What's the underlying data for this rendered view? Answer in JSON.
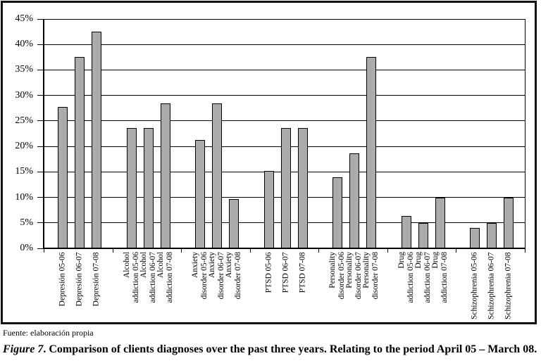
{
  "figure": {
    "source_note": "Fuente: elaboración propia",
    "caption_prefix": "Figure 7",
    "caption_text": ". Comparison of clients diagnoses over the past three years. Relating to the period April 05 – March 08."
  },
  "chart_data": {
    "type": "bar",
    "title": "",
    "xlabel": "",
    "ylabel": "",
    "ylim": [
      0,
      45
    ],
    "ytick_step": 5,
    "yticks": [
      "0%",
      "5%",
      "10%",
      "15%",
      "20%",
      "25%",
      "30%",
      "35%",
      "40%",
      "45%"
    ],
    "grid": true,
    "legend": false,
    "bar_fill": "#ababab",
    "bar_border": "#000000",
    "axis_color": "#000000",
    "groups": [
      {
        "category": "Depresión",
        "bars": [
          {
            "label": "Depresión 05-06",
            "lines": [
              "Depresión 05-06"
            ],
            "value": 27.8
          },
          {
            "label": "Depresión 06-07",
            "lines": [
              "Depresión 06-07"
            ],
            "value": 37.5
          },
          {
            "label": "Depresión 07-08",
            "lines": [
              "Depresión 07-08"
            ],
            "value": 42.5
          }
        ]
      },
      {
        "category": "Alcohol addiction",
        "bars": [
          {
            "label": "Alcohol addiction 05-06",
            "lines": [
              "Alcohol",
              "addiction 05-06"
            ],
            "value": 23.6
          },
          {
            "label": "Alcohol addiction 06-07",
            "lines": [
              "Alcohol",
              "addiction 06-07"
            ],
            "value": 23.6
          },
          {
            "label": "Alcohol addiction 07-08",
            "lines": [
              "Alcohol",
              "addiction 07-08"
            ],
            "value": 28.5
          }
        ]
      },
      {
        "category": "Anxiety disorder",
        "bars": [
          {
            "label": "Anxiety disorder 05-06",
            "lines": [
              "Anxiety",
              "disorder 05-06"
            ],
            "value": 21.3
          },
          {
            "label": "Anxiety disorder 06-07",
            "lines": [
              "Anxiety",
              "disorder 06-07"
            ],
            "value": 28.5
          },
          {
            "label": "Anxiety disorder 07-08",
            "lines": [
              "Anxiety",
              "disorder 07-08"
            ],
            "value": 9.7
          }
        ]
      },
      {
        "category": "PTSD",
        "bars": [
          {
            "label": "PTSD 05-06",
            "lines": [
              "PTSD 05-06"
            ],
            "value": 15.2
          },
          {
            "label": "PTSD 06-07",
            "lines": [
              "PTSD 06-07"
            ],
            "value": 23.6
          },
          {
            "label": "PTSD 07-08",
            "lines": [
              "PTSD 07-08"
            ],
            "value": 23.6
          }
        ]
      },
      {
        "category": "Personality disorder",
        "bars": [
          {
            "label": "Personality disorder 05-06",
            "lines": [
              "Personality",
              "disorder 05-06"
            ],
            "value": 13.9
          },
          {
            "label": "Personality disorder 06-07",
            "lines": [
              "Personality",
              "disorder 06-07"
            ],
            "value": 18.6
          },
          {
            "label": "Personality disorder 07-08",
            "lines": [
              "Personality",
              "disorder 07-08"
            ],
            "value": 37.5
          }
        ]
      },
      {
        "category": "Drug addiction",
        "bars": [
          {
            "label": "Drug addiction 05-06",
            "lines": [
              "Drug",
              "addiction 05-06"
            ],
            "value": 6.3
          },
          {
            "label": "Drug addiction 06-07",
            "lines": [
              "Drug",
              "addiction 06-07"
            ],
            "value": 5
          },
          {
            "label": "Drug addiction 07-08",
            "lines": [
              "Drug",
              "addiction 07-08"
            ],
            "value": 10
          }
        ]
      },
      {
        "category": "Schizophrenia",
        "bars": [
          {
            "label": "Schizophrenia 05-06",
            "lines": [
              "Schizophrenia 05-06"
            ],
            "value": 4
          },
          {
            "label": "Schizophrenia 06-07",
            "lines": [
              "Schizophrenia 06-07"
            ],
            "value": 5
          },
          {
            "label": "Schizophrenia 07-08",
            "lines": [
              "Schizophrenia 07-08"
            ],
            "value": 10
          }
        ]
      }
    ]
  }
}
